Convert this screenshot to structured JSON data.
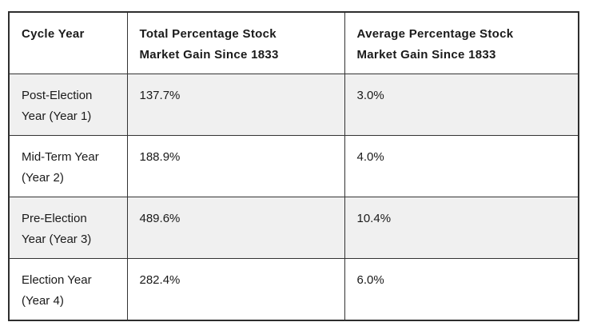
{
  "colors": {
    "row_alt_background": "#f0f0f0",
    "row_plain_background": "#ffffff",
    "border": "#333333",
    "text": "#1a1a1a",
    "page_background": "#ffffff"
  },
  "chart_data": {
    "type": "table",
    "title": "",
    "columns": [
      "Cycle Year",
      "Total Percentage Stock Market Gain Since 1833",
      "Average Percentage Stock Market Gain Since 1833"
    ],
    "rows": [
      [
        "Post-Election Year (Year 1)",
        "137.7%",
        "3.0%"
      ],
      [
        "Mid-Term Year (Year 2)",
        "188.9%",
        "4.0%"
      ],
      [
        "Pre-Election Year (Year 3)",
        "489.6%",
        "10.4%"
      ],
      [
        "Election Year (Year 4)",
        "282.4%",
        "6.0%"
      ]
    ]
  },
  "table": {
    "headers": [
      "Cycle Year",
      "Total Percentage Stock\nMarket Gain Since 1833",
      "Average Percentage Stock\nMarket Gain Since 1833"
    ],
    "rows": [
      [
        "Post-Election\nYear (Year 1)",
        "137.7%",
        "3.0%"
      ],
      [
        "Mid-Term Year\n(Year 2)",
        "188.9%",
        "4.0%"
      ],
      [
        "Pre-Election\nYear (Year 3)",
        "489.6%",
        "10.4%"
      ],
      [
        "Election Year\n(Year 4)",
        "282.4%",
        "6.0%"
      ]
    ]
  }
}
